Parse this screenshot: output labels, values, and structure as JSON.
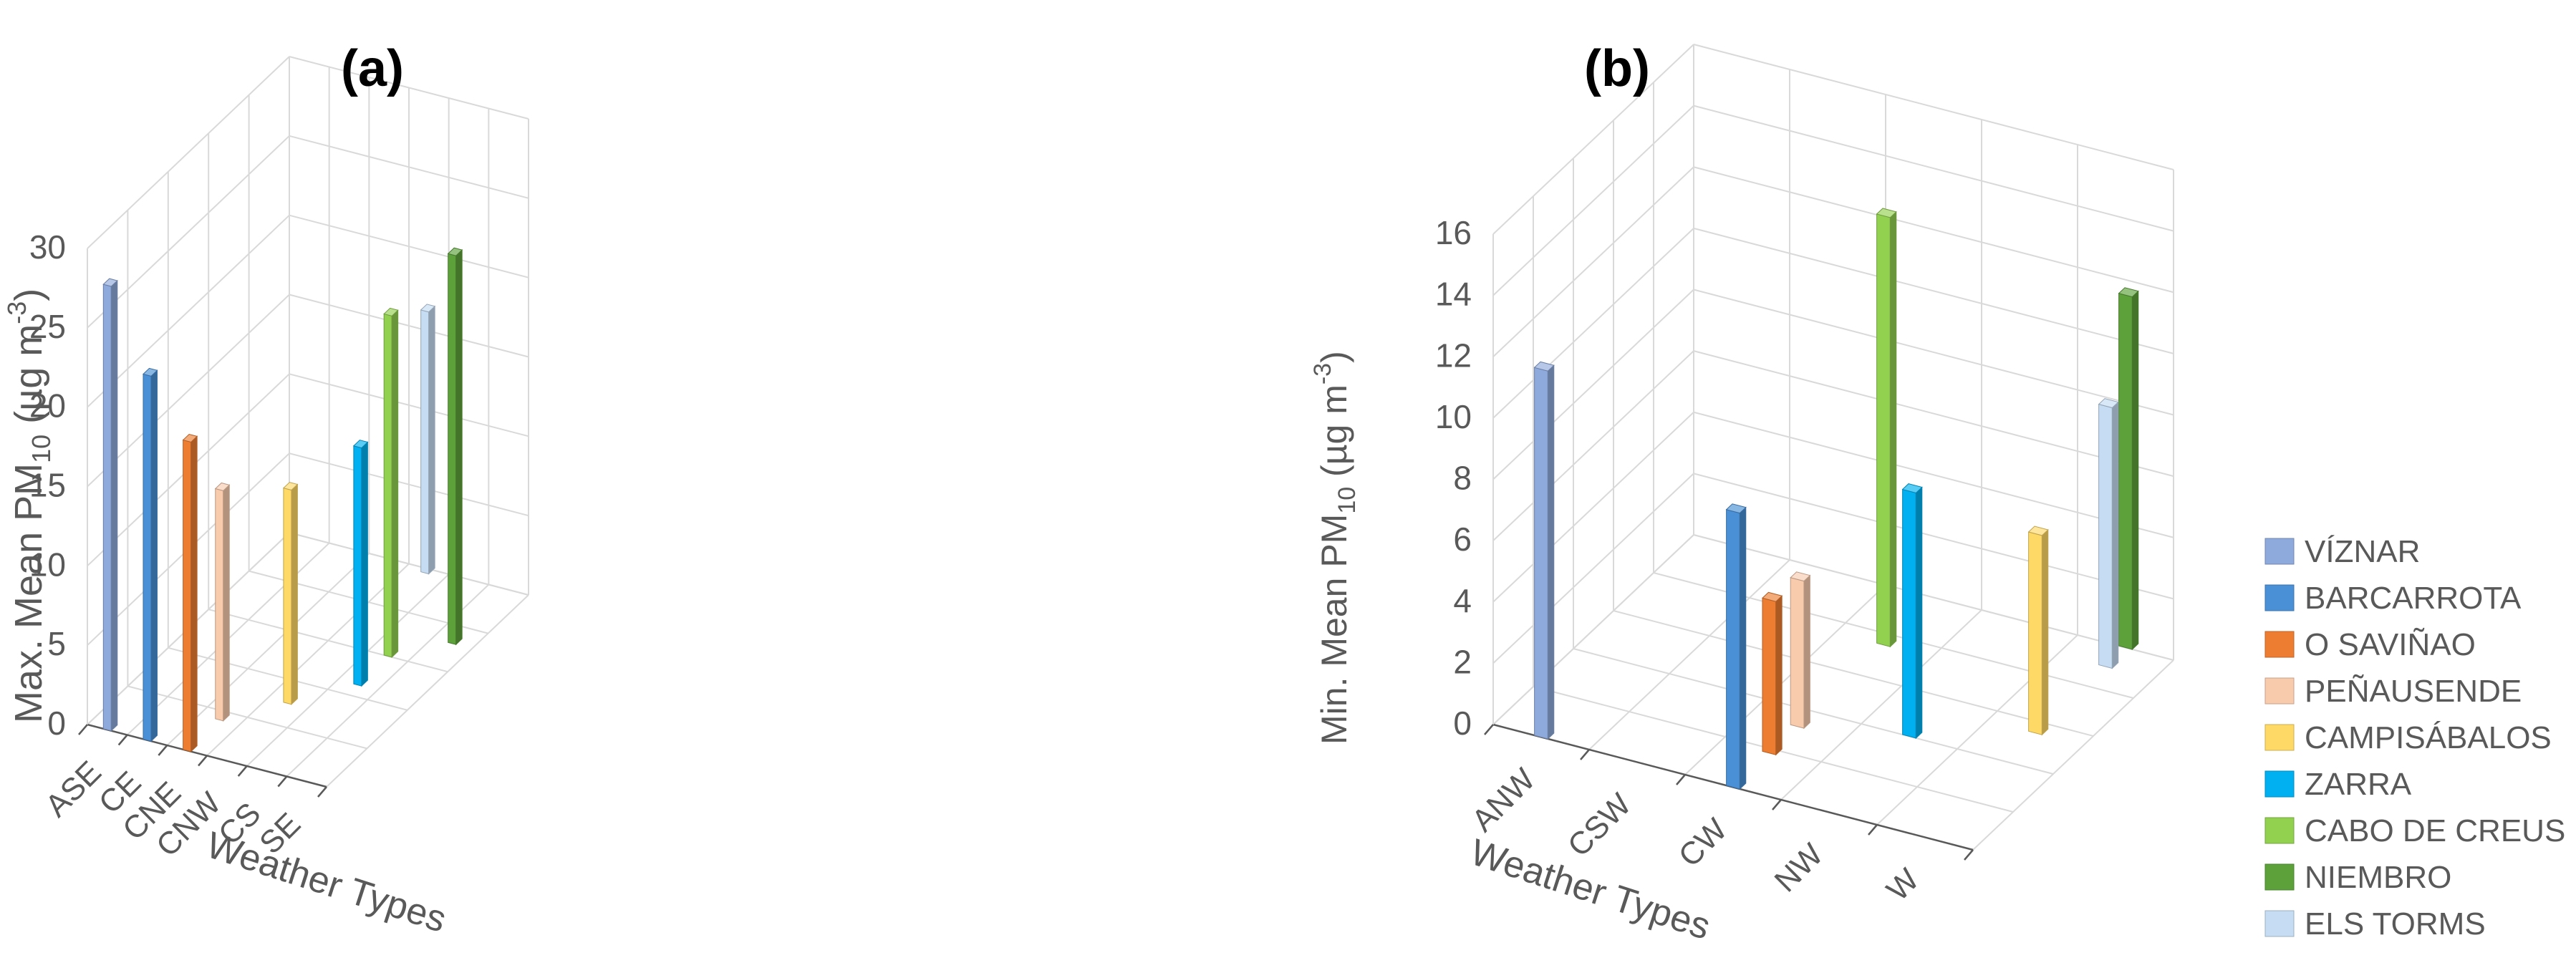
{
  "chart_data": [
    {
      "type": "bar",
      "panel_label": "(a)",
      "title": "",
      "xlabel": "Weather Types",
      "ylabel_main": "Max. Mean PM",
      "ylabel_sub": "10",
      "ylabel_unit": " (µg  m",
      "ylabel_sup": "-3",
      "ylabel_close": ")",
      "ylim": [
        0,
        30
      ],
      "yticks": [
        "0",
        "5",
        "10",
        "15",
        "20",
        "25",
        "30"
      ],
      "categories": [
        "ASE",
        "CE",
        "CNE",
        "CNW",
        "CS",
        "SE"
      ],
      "bars": [
        {
          "category": "ASE",
          "station": "VÍZNAR",
          "value": 28.0
        },
        {
          "category": "CE",
          "station": "BARCARROTA",
          "value": 23.0
        },
        {
          "category": "CNE",
          "station": "O SAVIÑAO",
          "value": 19.5
        },
        {
          "category": "CNE",
          "station": "PEÑAUSENDE",
          "value": 14.5
        },
        {
          "category": "CNW",
          "station": "CAMPISÁBALOS",
          "value": 13.5
        },
        {
          "category": "CNW",
          "station": "ELS TORMS",
          "value": 16.5
        },
        {
          "category": "CS",
          "station": "CABO DE CREUS",
          "value": 21.5
        },
        {
          "category": "CS",
          "station": "ZARRA",
          "value": 15.0
        },
        {
          "category": "SE",
          "station": "NIEMBRO",
          "value": 24.5
        }
      ]
    },
    {
      "type": "bar",
      "panel_label": "(b)",
      "title": "",
      "xlabel": "Weather Types",
      "ylabel_main": "Min. Mean PM",
      "ylabel_sub": "10",
      "ylabel_unit": " (µg  m",
      "ylabel_sup": "-3",
      "ylabel_close": ")",
      "ylim": [
        0,
        16
      ],
      "yticks": [
        "0",
        "2",
        "4",
        "6",
        "8",
        "10",
        "12",
        "14",
        "16"
      ],
      "categories": [
        "ANW",
        "CSW",
        "CW",
        "NW",
        "W"
      ],
      "bars": [
        {
          "category": "ANW",
          "station": "VÍZNAR",
          "value": 12.0
        },
        {
          "category": "CW",
          "station": "BARCARROTA",
          "value": 9.0
        },
        {
          "category": "CW",
          "station": "O SAVIÑAO",
          "value": 5.0
        },
        {
          "category": "CW",
          "station": "PEÑAUSENDE",
          "value": 4.8
        },
        {
          "category": "CW",
          "station": "CABO DE CREUS",
          "value": 14.0
        },
        {
          "category": "NW",
          "station": "ZARRA",
          "value": 8.0
        },
        {
          "category": "W",
          "station": "CAMPISÁBALOS",
          "value": 6.5
        },
        {
          "category": "W",
          "station": "ELS TORMS",
          "value": 8.5
        },
        {
          "category": "W",
          "station": "NIEMBRO",
          "value": 11.5
        }
      ]
    }
  ],
  "legend": [
    {
      "name": "VÍZNAR",
      "color": "#8ea9db"
    },
    {
      "name": "BARCARROTA",
      "color": "#4a90d6"
    },
    {
      "name": "O SAVIÑAO",
      "color": "#ed7d31"
    },
    {
      "name": "PEÑAUSENDE",
      "color": "#f8cbad"
    },
    {
      "name": "CAMPISÁBALOS",
      "color": "#ffd966"
    },
    {
      "name": "ZARRA",
      "color": "#00b0f0"
    },
    {
      "name": "CABO DE CREUS",
      "color": "#92d050"
    },
    {
      "name": "NIEMBRO",
      "color": "#5da13b"
    },
    {
      "name": "ELS TORMS",
      "color": "#c5dcf2"
    }
  ]
}
